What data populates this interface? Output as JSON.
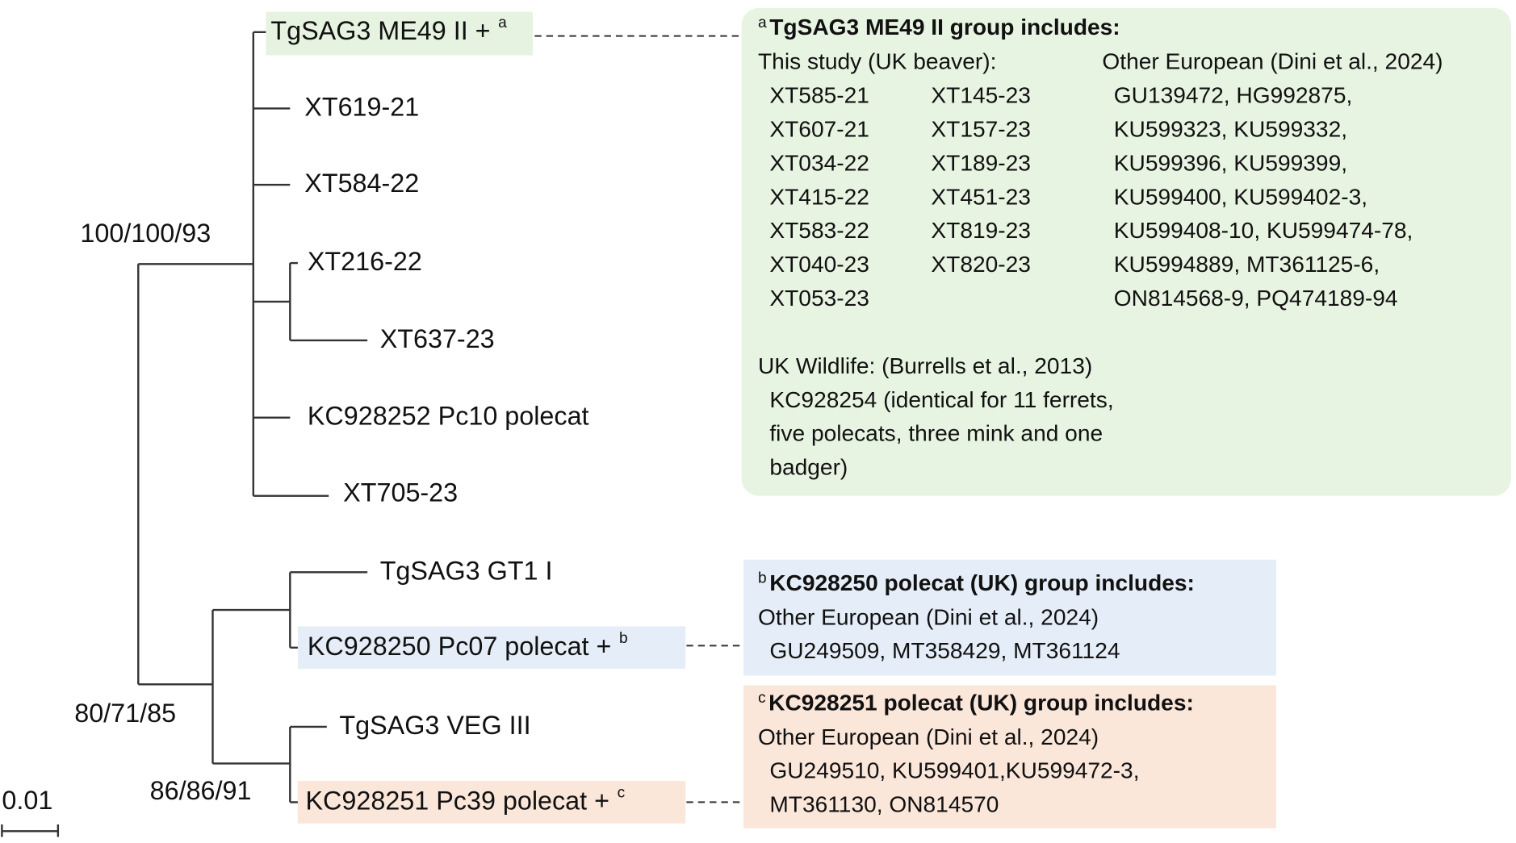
{
  "leaves": [
    {
      "label": "TgSAG3 ME49 II +",
      "sup": "a"
    },
    {
      "label": "XT619-21"
    },
    {
      "label": "XT584-22"
    },
    {
      "label": "XT216-22"
    },
    {
      "label": "XT637-23"
    },
    {
      "label": "KC928252 Pc10 polecat"
    },
    {
      "label": "XT705-23"
    },
    {
      "label": "TgSAG3 GT1 I"
    },
    {
      "label": "KC928250 Pc07 polecat +",
      "sup": "b"
    },
    {
      "label": "TgSAG3 VEG III"
    },
    {
      "label": "KC928251 Pc39 polecat +",
      "sup": "c"
    }
  ],
  "supports": [
    "100/100/93",
    "80/71/85",
    "86/86/91"
  ],
  "scale": "0.01",
  "notes": [
    {
      "marker": "a",
      "title": "TgSAG3 ME49 II group includes:",
      "study_heading": "This study (UK beaver):",
      "study_col1": [
        "XT585-21",
        "XT607-21",
        "XT034-22",
        "XT415-22",
        "XT583-22",
        "XT040-23",
        "XT053-23"
      ],
      "study_col2": [
        "XT145-23",
        "XT157-23",
        "XT189-23",
        "XT451-23",
        "XT819-23",
        "XT820-23"
      ],
      "other_heading": "Other European (Dini et al., 2024)",
      "other_lines": [
        "GU139472, HG992875,",
        "KU599323, KU599332,",
        "KU599396, KU599399,",
        "KU599400, KU599402-3,",
        "KU599408-10, KU599474-78,",
        "KU5994889, MT361125-6,",
        "ON814568-9, PQ474189-94"
      ],
      "wildlife_heading": "UK Wildlife: (Burrells et al., 2013)",
      "wildlife_lines": [
        "KC928254 (identical for 11 ferrets,",
        "five polecats, three mink and one",
        "badger)"
      ]
    },
    {
      "marker": "b",
      "title": "KC928250 polecat (UK) group includes:",
      "other_heading": "Other European (Dini et al., 2024)",
      "other_lines": [
        "GU249509, MT358429, MT361124"
      ]
    },
    {
      "marker": "c",
      "title": "KC928251 polecat (UK) group includes:",
      "other_heading": "Other European (Dini et al., 2024)",
      "other_lines": [
        "GU249510, KU599401,KU599472-3,",
        "MT361130, ON814570"
      ]
    }
  ]
}
